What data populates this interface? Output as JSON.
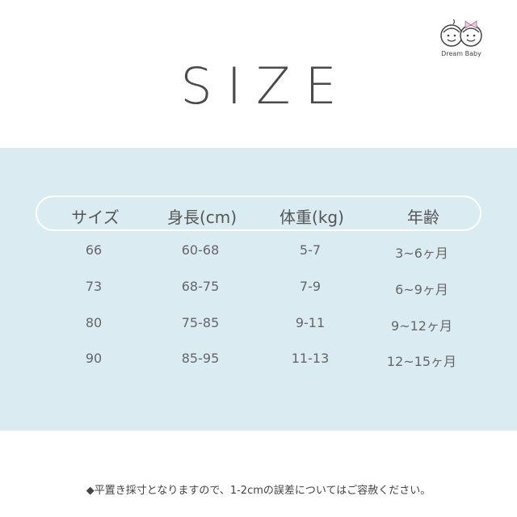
{
  "logo": {
    "text": "Dream Baby"
  },
  "title": "SIZE",
  "table": {
    "headers": [
      "サイズ",
      "身長(cm)",
      "体重(kg)",
      "年齢"
    ],
    "rows": [
      [
        "66",
        "60-68",
        "5-7",
        "3~6ヶ月"
      ],
      [
        "73",
        "68-75",
        "7-9",
        "6~9ヶ月"
      ],
      [
        "80",
        "75-85",
        "9-11",
        "9~12ヶ月"
      ],
      [
        "90",
        "85-95",
        "11-13",
        "12~15ヶ月"
      ]
    ]
  },
  "note": "◆平置き採寸となりますので、1-2cmの誤差についてはご容赦ください。",
  "colors": {
    "band": "#daebf2",
    "text": "#555555"
  }
}
